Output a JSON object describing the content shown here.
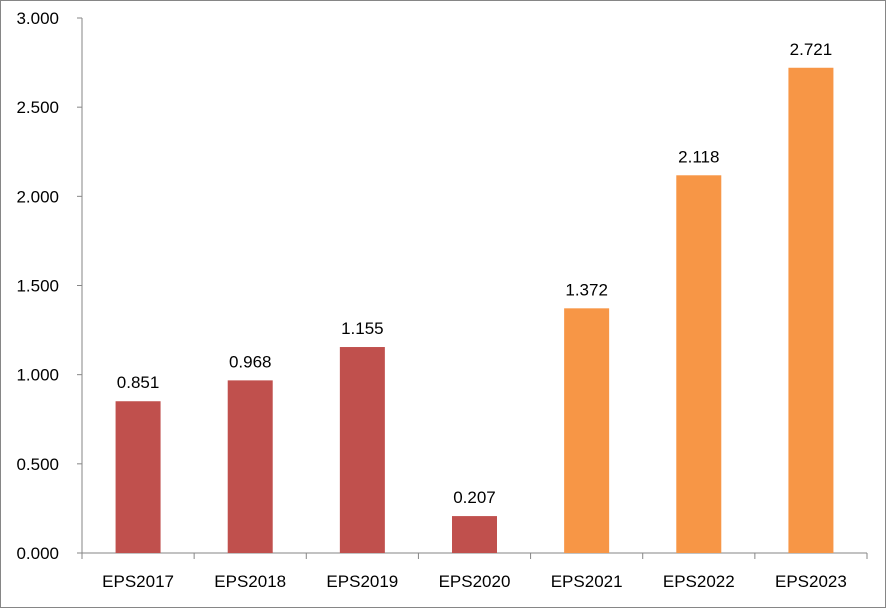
{
  "chart_data": {
    "type": "bar",
    "categories": [
      "EPS2017",
      "EPS2018",
      "EPS2019",
      "EPS2020",
      "EPS2021",
      "EPS2022",
      "EPS2023"
    ],
    "values": [
      0.851,
      0.968,
      1.155,
      0.207,
      1.372,
      2.118,
      2.721
    ],
    "data_labels": [
      "0.851",
      "0.968",
      "1.155",
      "0.207",
      "1.372",
      "2.118",
      "2.721"
    ],
    "bar_colors": [
      "#C0504D",
      "#C0504D",
      "#C0504D",
      "#C0504D",
      "#F79646",
      "#F79646",
      "#F79646"
    ],
    "y_ticks": [
      0,
      0.5,
      1,
      1.5,
      2,
      2.5,
      3
    ],
    "y_tick_labels": [
      "0.000",
      "0.500",
      "1.000",
      "1.500",
      "2.000",
      "2.500",
      "3.000"
    ],
    "ylim": [
      0,
      3
    ],
    "grid": false,
    "legend": "none"
  }
}
